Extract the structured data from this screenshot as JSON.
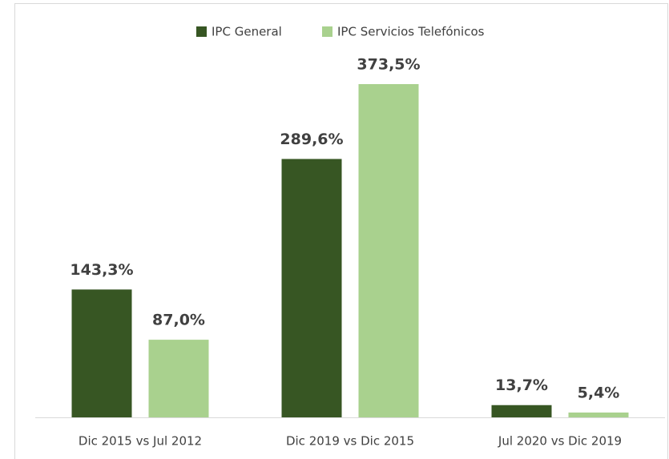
{
  "chart_data": {
    "type": "bar",
    "categories": [
      "Dic 2015 vs Jul 2012",
      "Dic 2019 vs Dic 2015",
      "Jul 2020 vs Dic 2019"
    ],
    "series": [
      {
        "name": "IPC General",
        "color": "#375623",
        "values": [
          143.3,
          289.6,
          13.7
        ],
        "value_labels": [
          "143,3%",
          "289,6%",
          "13,7%"
        ]
      },
      {
        "name": "IPC Servicios Telefónicos",
        "color": "#a9d18e",
        "values": [
          87.0,
          373.5,
          5.4
        ],
        "value_labels": [
          "87,0%",
          "373,5%",
          "5,4%"
        ]
      }
    ]
  }
}
